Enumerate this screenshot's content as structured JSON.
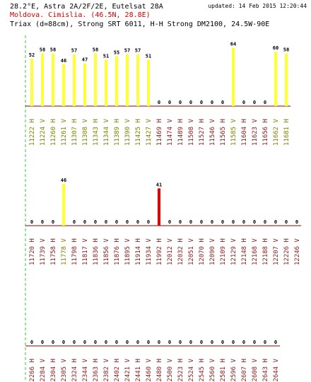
{
  "header": {
    "satellite": "28.2°E, Astra 2A/2F/2E, Eutelsat 28A",
    "location": "Moldova. Cimislia.  (46.5N, 28.8E)",
    "dish": "Triax (d=88cm), Strong SRT 6011, H-H Strong DM2100, 24.5W-90E",
    "updated": "updated: 14 Feb 2015 12:20:44"
  },
  "colors": {
    "bar_normal": "#ffff33",
    "bar_alert": "#ee0000",
    "baseline": "#8b0000",
    "axis_dashed": "#33cc33",
    "label_normal": "#8b1a1a",
    "label_highlight": "#808000"
  },
  "chart_data": [
    {
      "type": "bar",
      "categories": [
        "11222",
        "11224",
        "11260",
        "11261",
        "11307",
        "11308",
        "11343",
        "11344",
        "11389",
        "11390",
        "11425",
        "11427",
        "11469",
        "11474",
        "11489",
        "11508",
        "11527",
        "11546",
        "11565",
        "11585",
        "11604",
        "11623",
        "11656",
        "11662",
        "11681"
      ],
      "polarization": [
        "H",
        "V",
        "H",
        "V",
        "H",
        "V",
        "H",
        "V",
        "H",
        "V",
        "H",
        "V",
        "H",
        "V",
        "H",
        "V",
        "H",
        "V",
        "H",
        "V",
        "H",
        "V",
        "H",
        "V",
        "H"
      ],
      "values": [
        52,
        58,
        58,
        46,
        57,
        47,
        58,
        51,
        55,
        57,
        57,
        51,
        0,
        0,
        0,
        0,
        0,
        0,
        0,
        64,
        0,
        0,
        0,
        60,
        58
      ],
      "highlighted": [
        true,
        true,
        true,
        true,
        true,
        true,
        true,
        true,
        true,
        true,
        true,
        true,
        false,
        false,
        false,
        false,
        false,
        false,
        false,
        true,
        false,
        false,
        false,
        true,
        true
      ],
      "alert": [
        false,
        false,
        false,
        false,
        false,
        false,
        false,
        false,
        false,
        false,
        false,
        false,
        false,
        false,
        false,
        false,
        false,
        false,
        false,
        false,
        false,
        false,
        false,
        false,
        false
      ]
    },
    {
      "type": "bar",
      "categories": [
        "11720",
        "11739",
        "11758",
        "11778",
        "11798",
        "11817",
        "11836",
        "11856",
        "11876",
        "11895",
        "11914",
        "11934",
        "11992",
        "12012",
        "12032",
        "12051",
        "12070",
        "12090",
        "12109",
        "12129",
        "12148",
        "12168",
        "12188",
        "12207",
        "12226",
        "12246"
      ],
      "polarization": [
        "H",
        "V",
        "H",
        "V",
        "H",
        "V",
        "H",
        "V",
        "H",
        "V",
        "H",
        "V",
        "H",
        "V",
        "H",
        "V",
        "H",
        "V",
        "H",
        "V",
        "H",
        "V",
        "H",
        "V",
        "H",
        "V"
      ],
      "values": [
        0,
        0,
        0,
        46,
        0,
        0,
        0,
        0,
        0,
        0,
        0,
        0,
        41,
        0,
        0,
        0,
        0,
        0,
        0,
        0,
        0,
        0,
        0,
        0,
        0,
        0
      ],
      "highlighted": [
        false,
        false,
        false,
        true,
        false,
        false,
        false,
        false,
        false,
        false,
        false,
        false,
        false,
        false,
        false,
        false,
        false,
        false,
        false,
        false,
        false,
        false,
        false,
        false,
        false,
        false
      ],
      "alert": [
        false,
        false,
        false,
        false,
        false,
        false,
        false,
        false,
        false,
        false,
        false,
        false,
        true,
        false,
        false,
        false,
        false,
        false,
        false,
        false,
        false,
        false,
        false,
        false,
        false,
        false
      ]
    },
    {
      "type": "bar",
      "categories": [
        "12266",
        "12284",
        "12304",
        "12305",
        "12324",
        "12344",
        "12363",
        "12382",
        "12402",
        "12421",
        "12441",
        "12460",
        "12480",
        "12500",
        "12523",
        "12524",
        "12545",
        "12560",
        "12581",
        "12596",
        "12607",
        "12608",
        "12643",
        "12644"
      ],
      "polarization": [
        "H",
        "V",
        "H",
        "V",
        "H",
        "V",
        "H",
        "V",
        "H",
        "V",
        "H",
        "V",
        "H",
        "V",
        "H",
        "V",
        "H",
        "V",
        "H",
        "V",
        "H",
        "V",
        "H",
        "V"
      ],
      "values": [
        0,
        0,
        0,
        0,
        0,
        0,
        0,
        0,
        0,
        0,
        0,
        0,
        0,
        0,
        0,
        0,
        0,
        0,
        0,
        0,
        0,
        0,
        0,
        0
      ],
      "highlighted": [
        false,
        false,
        false,
        false,
        false,
        false,
        false,
        false,
        false,
        false,
        false,
        false,
        false,
        false,
        false,
        false,
        false,
        false,
        false,
        false,
        false,
        false,
        false,
        false
      ],
      "alert": [
        false,
        false,
        false,
        false,
        false,
        false,
        false,
        false,
        false,
        false,
        false,
        false,
        false,
        false,
        false,
        false,
        false,
        false,
        false,
        false,
        false,
        false,
        false,
        false
      ]
    }
  ]
}
